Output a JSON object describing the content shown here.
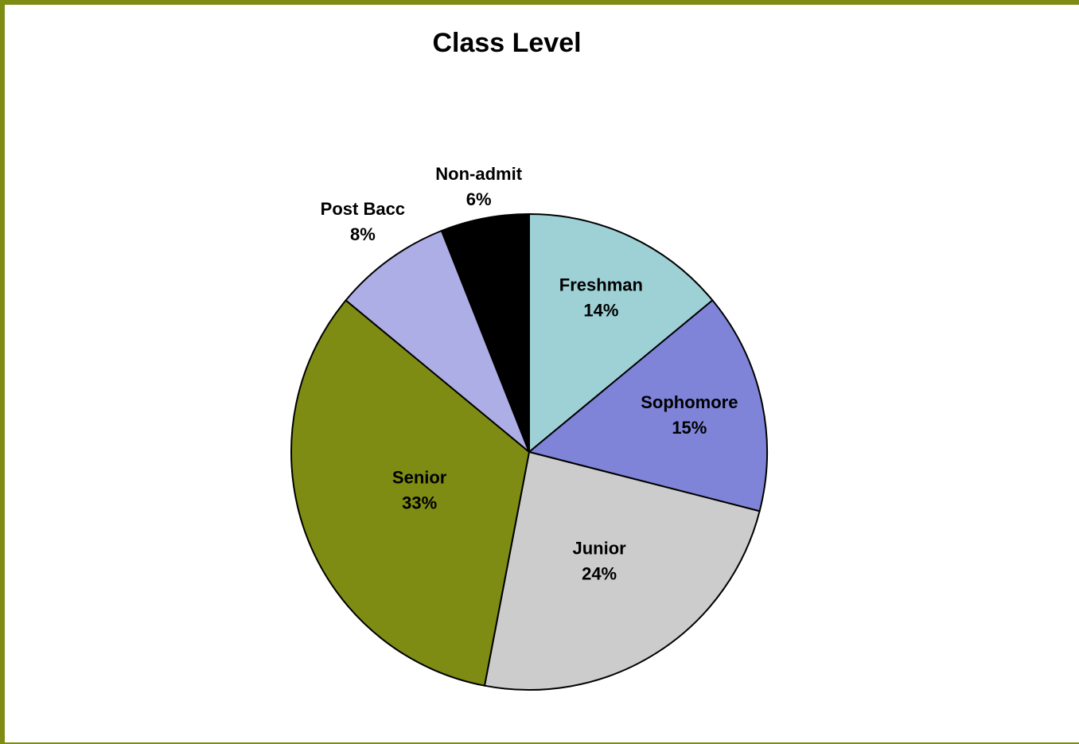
{
  "chart_data": {
    "type": "pie",
    "title": "Class Level",
    "categories": [
      "Freshman",
      "Sophomore",
      "Junior",
      "Senior",
      "Post Bacc",
      "Non-admit"
    ],
    "values": [
      14,
      15,
      24,
      33,
      8,
      6
    ],
    "value_labels": [
      "14%",
      "15%",
      "24%",
      "33%",
      "8%",
      "6%"
    ],
    "colors": [
      "#9ed1d6",
      "#7f84d9",
      "#cccccc",
      "#7f8c14",
      "#adaee6",
      "#000000"
    ]
  }
}
